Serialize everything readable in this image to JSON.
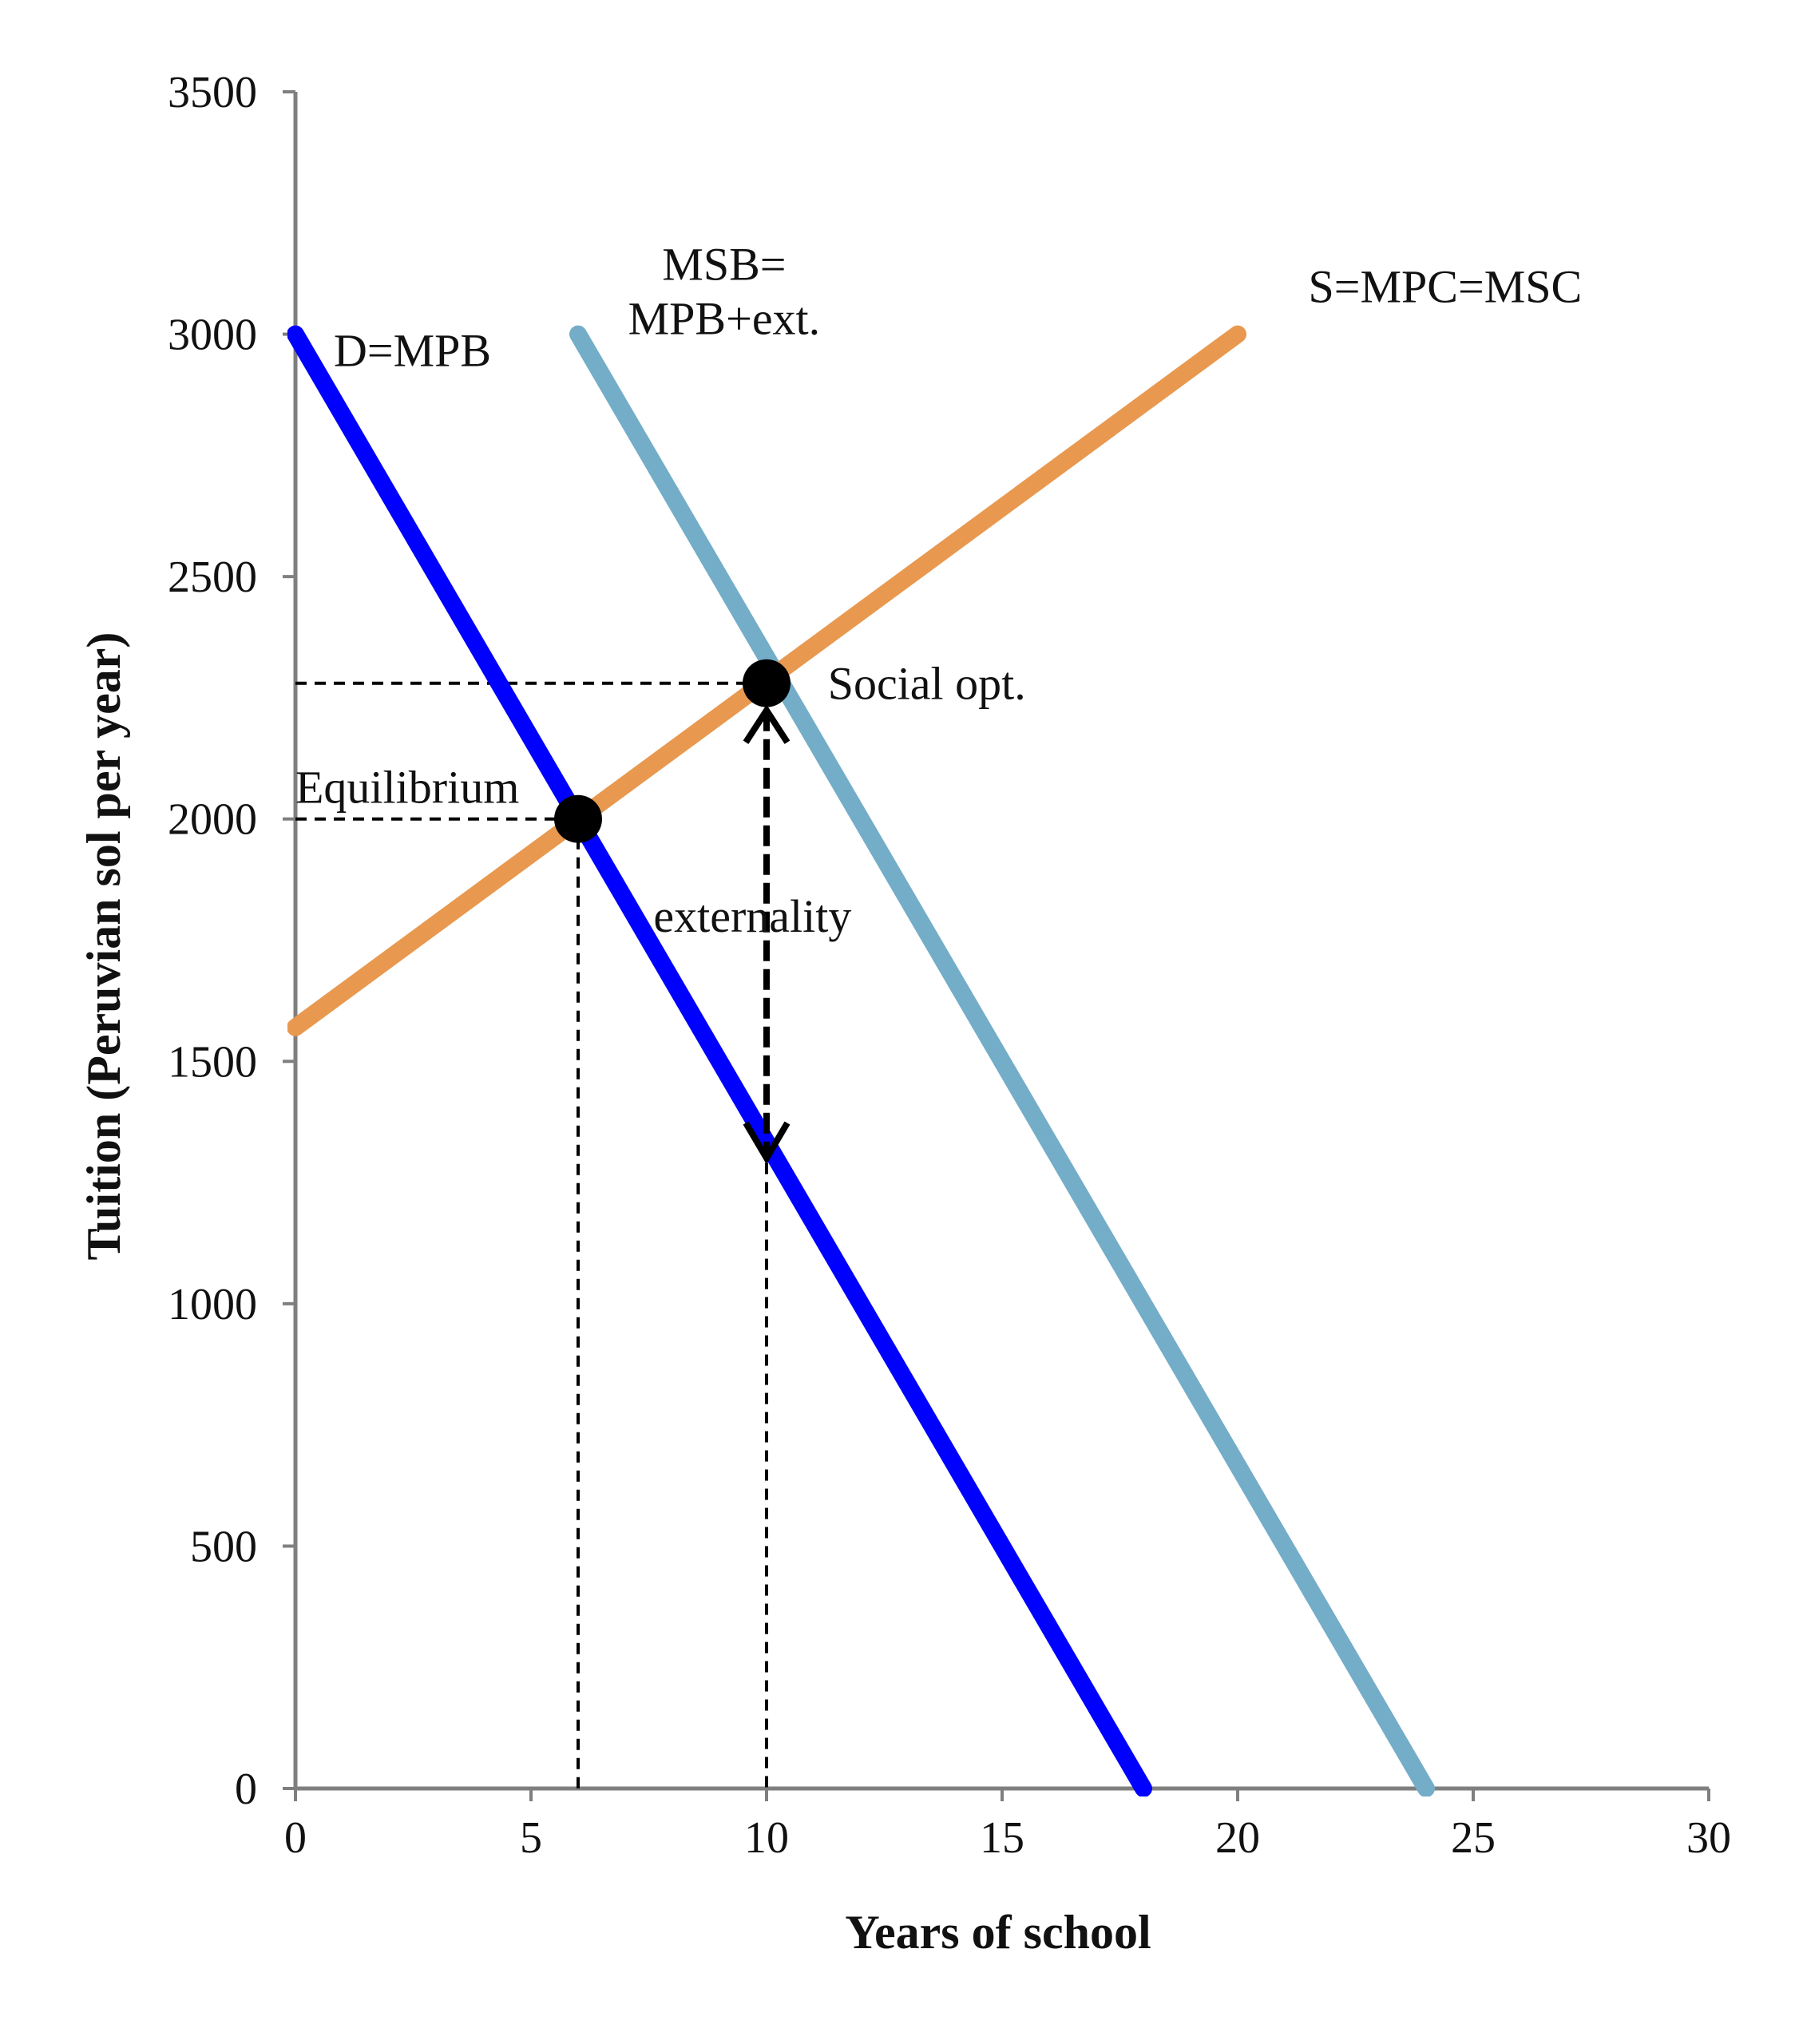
{
  "chart_data": {
    "type": "line",
    "title": "",
    "xlabel": "Years of school",
    "ylabel": "Tuition (Peruvian sol per year)",
    "xlim": [
      0,
      30
    ],
    "ylim": [
      0,
      3500
    ],
    "x_ticks": [
      0,
      5,
      10,
      15,
      20,
      25,
      30
    ],
    "y_ticks": [
      0,
      500,
      1000,
      1500,
      2000,
      2500,
      3000,
      3500
    ],
    "grid": false,
    "legend": "none",
    "series": [
      {
        "name": "D=MPB",
        "color": "#0000ff",
        "points": [
          [
            0,
            3000
          ],
          [
            18,
            0
          ]
        ]
      },
      {
        "name": "MSB=\nMPB+ext.",
        "color": "#74adc8",
        "points": [
          [
            6,
            3000
          ],
          [
            24,
            0
          ]
        ]
      },
      {
        "name": "S=MPC=MSC",
        "color": "#e8994f",
        "points": [
          [
            0,
            1570
          ],
          [
            20,
            3000
          ]
        ]
      }
    ],
    "markers": [
      {
        "label": "Equilibrium",
        "x": 6,
        "y": 2000
      },
      {
        "label": "Social opt.",
        "x": 10,
        "y": 2280
      }
    ],
    "guides": [
      {
        "from": [
          0,
          2000
        ],
        "to": [
          6,
          2000
        ]
      },
      {
        "from": [
          6,
          2000
        ],
        "to": [
          6,
          0
        ]
      },
      {
        "from": [
          0,
          2280
        ],
        "to": [
          10,
          2280
        ]
      },
      {
        "from": [
          10,
          1330
        ],
        "to": [
          10,
          0
        ]
      }
    ],
    "arrow": {
      "label": "externality",
      "x": 10,
      "y_from": 2280,
      "y_to": 1330
    },
    "colors": {
      "axis": "#7f7f7f",
      "text": "#111111",
      "guide": "#000000"
    }
  }
}
